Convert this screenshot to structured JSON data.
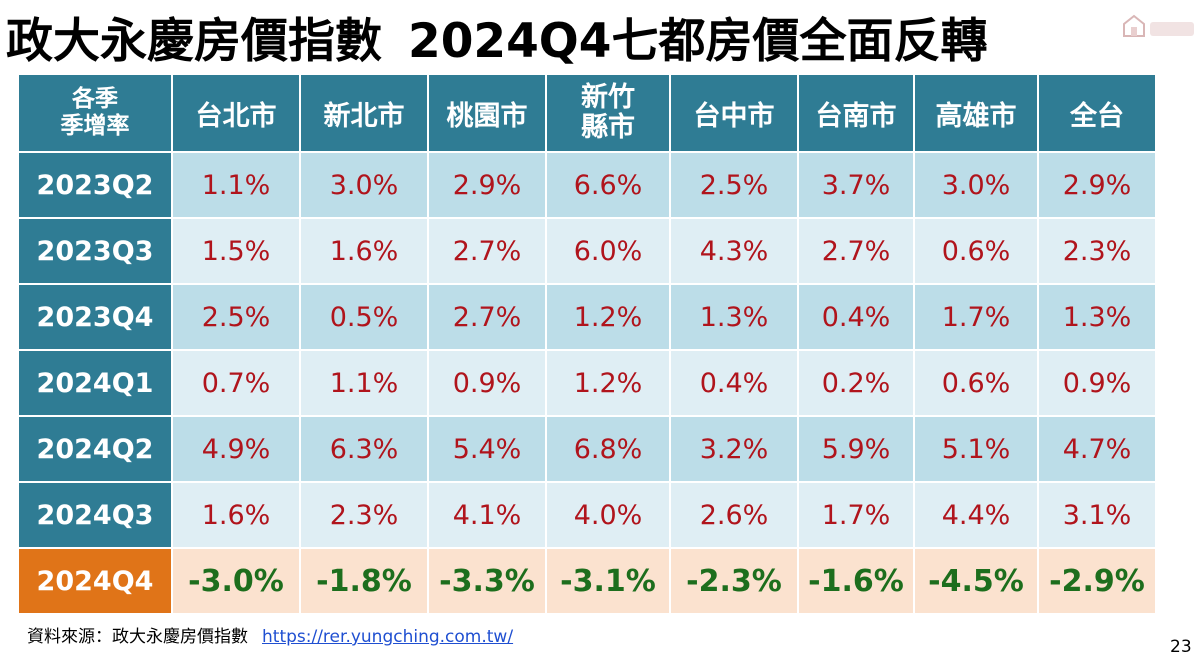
{
  "title": {
    "left": "政大永慶房價指數",
    "right": "2024Q4七都房價全面反轉"
  },
  "logo": {
    "icon": "house-logo-icon",
    "color": "#b0141c"
  },
  "table": {
    "corner_line1": "各季",
    "corner_line2": "季增率",
    "columns": [
      {
        "line1": "台北市",
        "line2": ""
      },
      {
        "line1": "新北市",
        "line2": ""
      },
      {
        "line1": "桃園市",
        "line2": ""
      },
      {
        "line1": "新竹",
        "line2": "縣市"
      },
      {
        "line1": "台中市",
        "line2": ""
      },
      {
        "line1": "台南市",
        "line2": ""
      },
      {
        "line1": "高雄市",
        "line2": ""
      },
      {
        "line1": "全台",
        "line2": ""
      }
    ],
    "rows": [
      {
        "label": "2023Q2",
        "values": [
          "1.1%",
          "3.0%",
          "2.9%",
          "6.6%",
          "2.5%",
          "3.7%",
          "3.0%",
          "2.9%"
        ]
      },
      {
        "label": "2023Q3",
        "values": [
          "1.5%",
          "1.6%",
          "2.7%",
          "6.0%",
          "4.3%",
          "2.7%",
          "0.6%",
          "2.3%"
        ]
      },
      {
        "label": "2023Q4",
        "values": [
          "2.5%",
          "0.5%",
          "2.7%",
          "1.2%",
          "1.3%",
          "0.4%",
          "1.7%",
          "1.3%"
        ]
      },
      {
        "label": "2024Q1",
        "values": [
          "0.7%",
          "1.1%",
          "0.9%",
          "1.2%",
          "0.4%",
          "0.2%",
          "0.6%",
          "0.9%"
        ]
      },
      {
        "label": "2024Q2",
        "values": [
          "4.9%",
          "6.3%",
          "5.4%",
          "6.8%",
          "3.2%",
          "5.9%",
          "5.1%",
          "4.7%"
        ]
      },
      {
        "label": "2024Q3",
        "values": [
          "1.6%",
          "2.3%",
          "4.1%",
          "4.0%",
          "2.6%",
          "1.7%",
          "4.4%",
          "3.1%"
        ]
      },
      {
        "label": "2024Q4",
        "values": [
          "-3.0%",
          "-1.8%",
          "-3.3%",
          "-3.1%",
          "-2.3%",
          "-1.6%",
          "-4.5%",
          "-2.9%"
        ]
      }
    ],
    "colors": {
      "header": "#2f7c94",
      "highlight_label": "#e07418",
      "positive_text": "#b0141c",
      "negative_text": "#1d6e1d"
    }
  },
  "footer": {
    "source_label": "資料來源：政大永慶房價指數",
    "source_link": "https://rer.yungching.com.tw/",
    "page_number": "23"
  }
}
